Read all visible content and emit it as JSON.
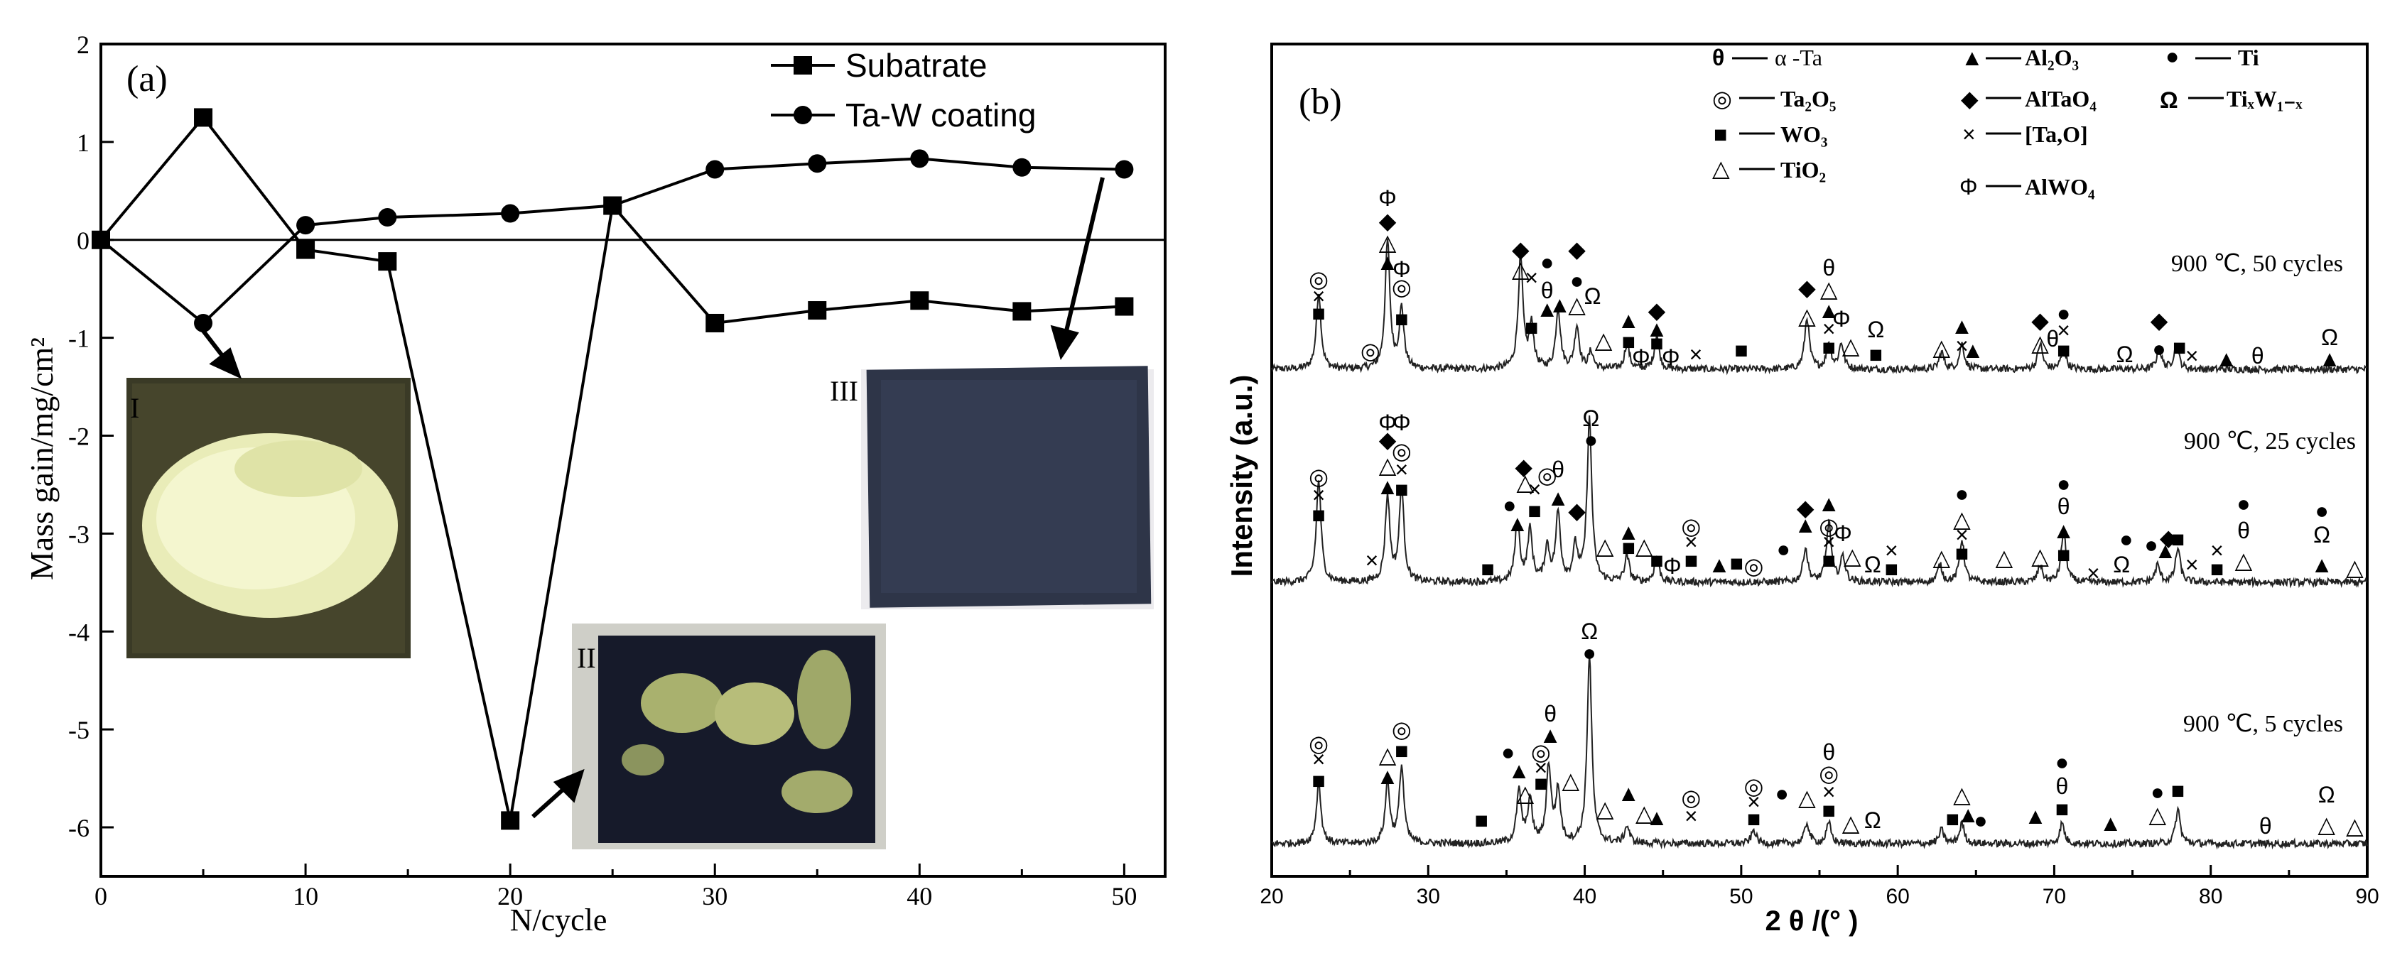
{
  "chart_data": [
    {
      "type": "line",
      "panel_label": "(a)",
      "xlabel": "N/cycle",
      "ylabel": "Mass gain/mg/cm²",
      "xlim": [
        0,
        52
      ],
      "ylim": [
        -6.5,
        2
      ],
      "x_ticks": [
        "0",
        "10",
        "20",
        "30",
        "40",
        "50"
      ],
      "y_ticks": [
        "2",
        "1",
        "0",
        "-1",
        "-2",
        "-3",
        "-4",
        "-5",
        "-6"
      ],
      "legend": {
        "placement": "top-right",
        "entries": [
          "Subatrate",
          "Ta-W coating"
        ]
      },
      "series": [
        {
          "name": "Subatrate",
          "marker": "square",
          "x": [
            0,
            5,
            10,
            14,
            20,
            25,
            30,
            35,
            40,
            45,
            50
          ],
          "y": [
            0,
            1.25,
            -0.1,
            -0.22,
            -5.93,
            0.35,
            -0.85,
            -0.72,
            -0.62,
            -0.73,
            -0.68
          ]
        },
        {
          "name": "Ta-W coating",
          "marker": "circle",
          "x": [
            0,
            5,
            10,
            14,
            20,
            25,
            30,
            35,
            40,
            45,
            50
          ],
          "y": [
            0,
            -0.85,
            0.15,
            0.23,
            0.27,
            0.35,
            0.72,
            0.78,
            0.83,
            0.74,
            0.72
          ]
        }
      ],
      "insets": [
        {
          "label": "I",
          "point_x": 5
        },
        {
          "label": "II",
          "point_x": 20
        },
        {
          "label": "III",
          "point_x": 50
        }
      ]
    },
    {
      "type": "line",
      "panel_label": "(b)",
      "xlabel": "2 θ /(° )",
      "ylabel": "Intensity (a.u.)",
      "xlim": [
        20,
        90
      ],
      "x_ticks": [
        "20",
        "30",
        "40",
        "50",
        "60",
        "70",
        "80",
        "90"
      ],
      "legend_entries": [
        {
          "symbol": "θ",
          "label": "α -Ta"
        },
        {
          "symbol": "▲",
          "label": "Al₂O₃"
        },
        {
          "symbol": "●",
          "label": "Ti"
        },
        {
          "symbol": "◎",
          "label": "Ta₂O₅"
        },
        {
          "symbol": "◆",
          "label": "AlTaO₄"
        },
        {
          "symbol": "Ω",
          "label": "TiₓW₁₋ₓ"
        },
        {
          "symbol": "■",
          "label": "WO₃"
        },
        {
          "symbol": "×",
          "label": "[Ta,O]"
        },
        {
          "symbol": "△",
          "label": "TiO₂"
        },
        {
          "symbol": "Φ",
          "label": "AlWO₄"
        }
      ],
      "series": [
        {
          "name": "900 ℃, 50 cycles",
          "peaks": [
            [
              23,
              0.45
            ],
            [
              27.4,
              0.75
            ],
            [
              28.3,
              0.35
            ],
            [
              35.9,
              0.65
            ],
            [
              36.6,
              0.25
            ],
            [
              38.3,
              0.35
            ],
            [
              39.5,
              0.25
            ],
            [
              40.4,
              0.1
            ],
            [
              42.7,
              0.15
            ],
            [
              44.6,
              0.2
            ],
            [
              54.2,
              0.3
            ],
            [
              55.6,
              0.15
            ],
            [
              56.4,
              0.15
            ],
            [
              62.8,
              0.1
            ],
            [
              64.1,
              0.15
            ],
            [
              69.1,
              0.15
            ],
            [
              70.6,
              0.12
            ],
            [
              76.7,
              0.12
            ],
            [
              77.8,
              0.15
            ]
          ]
        },
        {
          "name": "900 ℃, 25 cycles",
          "peaks": [
            [
              23,
              0.6
            ],
            [
              27.4,
              0.5
            ],
            [
              28.3,
              0.55
            ],
            [
              35.7,
              0.35
            ],
            [
              36.5,
              0.3
            ],
            [
              37.6,
              0.2
            ],
            [
              38.3,
              0.4
            ],
            [
              39.4,
              0.2
            ],
            [
              40.3,
              0.95
            ],
            [
              42.7,
              0.15
            ],
            [
              44.6,
              0.15
            ],
            [
              54.1,
              0.2
            ],
            [
              55.6,
              0.35
            ],
            [
              56.5,
              0.15
            ],
            [
              62.7,
              0.1
            ],
            [
              64.1,
              0.25
            ],
            [
              69.1,
              0.1
            ],
            [
              70.6,
              0.3
            ],
            [
              76.6,
              0.1
            ],
            [
              77.9,
              0.2
            ]
          ]
        },
        {
          "name": "900 ℃, 5 cycles",
          "peaks": [
            [
              23,
              0.35
            ],
            [
              27.4,
              0.35
            ],
            [
              28.3,
              0.45
            ],
            [
              35.8,
              0.3
            ],
            [
              36.5,
              0.25
            ],
            [
              37.7,
              0.45
            ],
            [
              38.3,
              0.3
            ],
            [
              40.3,
              1.1
            ],
            [
              42.7,
              0.1
            ],
            [
              50.8,
              0.08
            ],
            [
              54.2,
              0.12
            ],
            [
              55.6,
              0.12
            ],
            [
              62.8,
              0.08
            ],
            [
              64.1,
              0.12
            ],
            [
              70.5,
              0.12
            ],
            [
              77.9,
              0.2
            ]
          ]
        }
      ]
    }
  ]
}
